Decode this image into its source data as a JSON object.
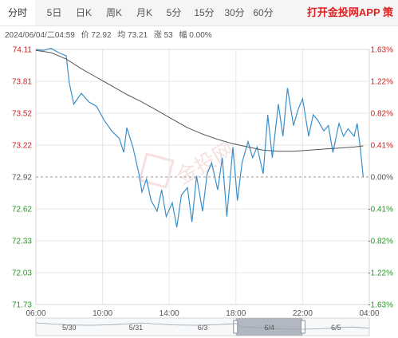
{
  "tabs": [
    {
      "label": "分时",
      "active": true
    },
    {
      "label": "5日",
      "active": false
    },
    {
      "label": "日K",
      "active": false
    },
    {
      "label": "周K",
      "active": false
    },
    {
      "label": "月K",
      "active": false
    },
    {
      "label": "5分",
      "active": false
    },
    {
      "label": "15分",
      "active": false
    },
    {
      "label": "30分",
      "active": false
    },
    {
      "label": "60分",
      "active": false
    }
  ],
  "promo": "打开金投网APP 策",
  "info": {
    "datetime": "2024/06/04/二04:59",
    "price": "价 72.92",
    "average": "均 73.21",
    "change": "涨 53",
    "amplitude": "幅 0.00%"
  },
  "watermark": "金投网",
  "colors": {
    "up": "#d02020",
    "down": "#1f9a1f",
    "price_line": "#3a8fc9",
    "avg_line": "#555555",
    "grid": "#e6e6e6",
    "watermark": "#f0c8c8",
    "nav_highlight": "#9aa3ad"
  },
  "chart_data": {
    "type": "line",
    "y_labels_left": [
      "74.11",
      "73.81",
      "73.52",
      "73.22",
      "72.92",
      "72.62",
      "72.33",
      "72.03",
      "71.73"
    ],
    "y_labels_right": [
      "1.63%",
      "1.22%",
      "0.82%",
      "0.41%",
      "0.00%",
      "-0.41%",
      "-0.82%",
      "-1.22%",
      "-1.63%"
    ],
    "ylim": [
      71.73,
      74.11
    ],
    "reference_price": 72.92,
    "x_labels": [
      "06:00",
      "10:00",
      "14:00",
      "18:00",
      "22:00",
      "04:00"
    ],
    "x_range_hours": [
      0,
      22
    ],
    "grid": true,
    "series": [
      {
        "key": "price",
        "x": [
          0,
          0.5,
          1,
          1.5,
          2,
          2.2,
          2.5,
          3,
          3.5,
          4,
          4.5,
          5,
          5.5,
          5.8,
          6,
          6.4,
          6.8,
          7,
          7.3,
          7.6,
          8,
          8.3,
          8.6,
          9,
          9.3,
          9.6,
          10,
          10.3,
          10.6,
          11,
          11.3,
          11.6,
          12,
          12.3,
          12.6,
          13,
          13.3,
          13.6,
          14,
          14.3,
          14.6,
          15,
          15.3,
          15.6,
          16,
          16.3,
          16.6,
          17,
          17.3,
          17.6,
          18,
          18.3,
          18.6,
          19,
          19.3,
          19.6,
          20,
          20.3,
          20.6,
          21,
          21.2,
          21.4,
          21.6
        ],
        "y": [
          74.11,
          74.1,
          74.12,
          74.08,
          74.05,
          73.8,
          73.6,
          73.7,
          73.62,
          73.58,
          73.45,
          73.35,
          73.28,
          73.15,
          73.38,
          73.2,
          72.95,
          72.78,
          72.9,
          72.7,
          72.6,
          72.8,
          72.55,
          72.68,
          72.45,
          72.75,
          72.82,
          72.5,
          72.93,
          72.6,
          72.95,
          73.05,
          72.8,
          73.1,
          72.55,
          73.2,
          72.7,
          73.05,
          73.25,
          73.1,
          73.2,
          72.95,
          73.5,
          73.1,
          73.6,
          73.3,
          73.75,
          73.4,
          73.55,
          73.65,
          73.3,
          73.5,
          73.45,
          73.35,
          73.4,
          73.15,
          73.42,
          73.3,
          73.37,
          73.3,
          73.42,
          73.2,
          72.92
        ]
      },
      {
        "key": "average",
        "x": [
          0,
          1,
          2,
          3,
          4,
          5,
          6,
          7,
          8,
          9,
          10,
          11,
          12,
          13,
          14,
          15,
          16,
          17,
          18,
          19,
          20,
          21,
          21.6
        ],
        "y": [
          74.1,
          74.08,
          74.02,
          73.93,
          73.85,
          73.77,
          73.69,
          73.62,
          73.54,
          73.46,
          73.38,
          73.32,
          73.27,
          73.23,
          73.2,
          73.17,
          73.16,
          73.16,
          73.17,
          73.18,
          73.19,
          73.2,
          73.21
        ]
      }
    ]
  },
  "navigator": {
    "labels": [
      "5/30",
      "5/31",
      "6/3",
      "6/4",
      "6/5"
    ],
    "selected_index": 3
  }
}
